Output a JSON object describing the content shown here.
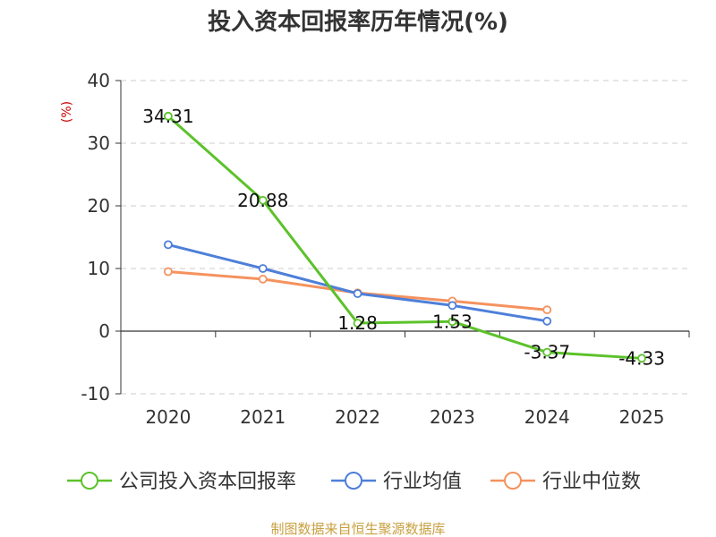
{
  "chart_data": {
    "type": "line",
    "title": "投入资本回报率历年情况(%)",
    "ylabel": "(%)",
    "xlabel": "",
    "categories": [
      "2020",
      "2021",
      "2022",
      "2023",
      "2024",
      "2025"
    ],
    "ylim": [
      -10,
      40
    ],
    "yticks": [
      -10,
      0,
      10,
      20,
      30,
      40
    ],
    "grid": true,
    "legend_position": "bottom",
    "series": [
      {
        "name": "公司投入资本回报率",
        "color": "#5cc22a",
        "values": [
          34.31,
          20.88,
          1.28,
          1.53,
          -3.37,
          -4.33
        ],
        "labels": [
          "34.31",
          "20.88",
          "1.28",
          "1.53",
          "-3.37",
          "-4.33"
        ]
      },
      {
        "name": "行业均值",
        "color": "#4e7fd9",
        "values": [
          13.8,
          10.0,
          6.0,
          4.1,
          1.6,
          null
        ]
      },
      {
        "name": "行业中位数",
        "color": "#f5925e",
        "values": [
          9.5,
          8.3,
          6.1,
          4.8,
          3.4,
          null
        ]
      }
    ],
    "source": "制图数据来自恒生聚源数据库"
  }
}
